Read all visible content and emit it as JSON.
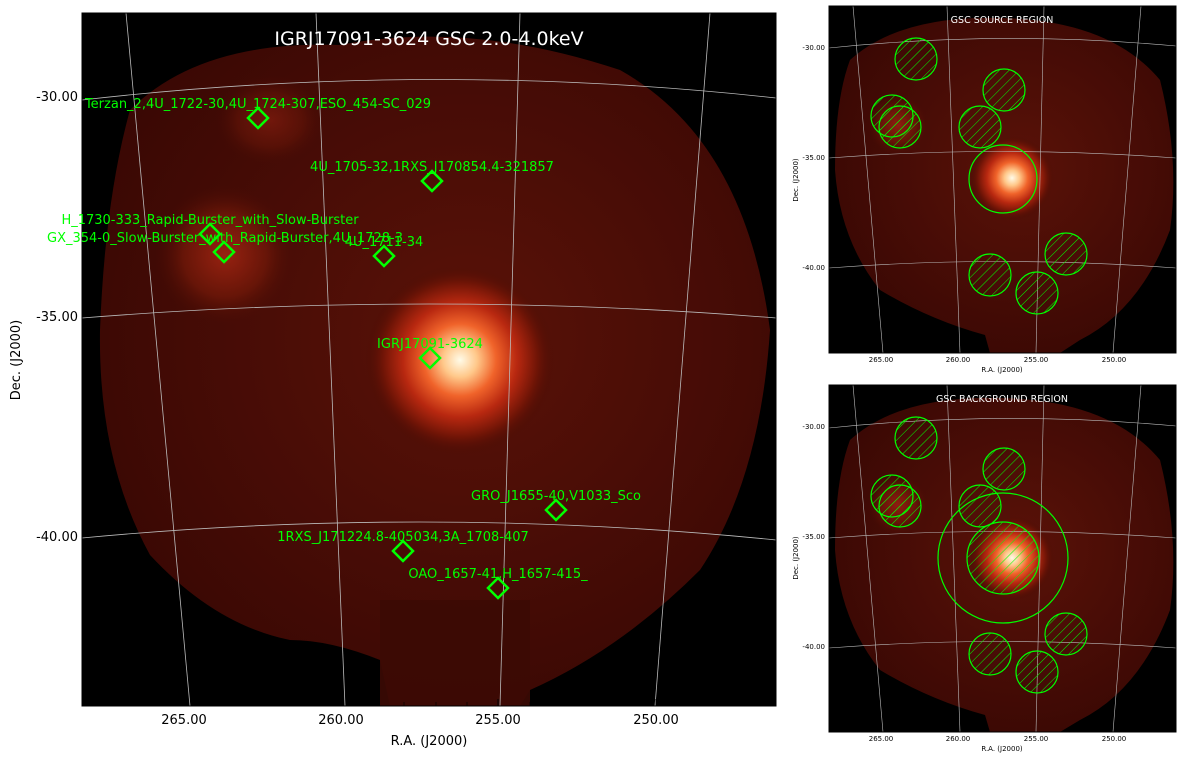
{
  "main": {
    "title": "IGRJ17091-3624 GSC 2.0-4.0keV",
    "xlabel": "R.A. (J2000)",
    "ylabel": "Dec. (J2000)",
    "ra_ticks": [
      "265.00",
      "260.00",
      "255.00",
      "250.00"
    ],
    "dec_ticks": [
      "-30.00",
      "-35.00",
      "-40.00"
    ],
    "sources": [
      {
        "label": "Terzan_2,4U_1722-30,4U_1724-307,ESO_454-SC_029"
      },
      {
        "label": "4U_1705-32,1RXS_J170854.4-321857"
      },
      {
        "label": "H_1730-333_Rapid-Burster_with_Slow-Burster"
      },
      {
        "label": "GX_354-0_Slow-Burster_with_Rapid-Burster,4U_1728-3"
      },
      {
        "label": "4U_1711-34"
      },
      {
        "label": "IGRJ17091-3624"
      },
      {
        "label": "GRO_J1655-40,V1033_Sco"
      },
      {
        "label": "1RXS_J171224.8-405034,3A_1708-407"
      },
      {
        "label": "OAO_1657-41,H_1657-415_"
      }
    ]
  },
  "source_panel": {
    "title": "GSC SOURCE REGION",
    "xlabel": "R.A. (J2000)",
    "ylabel": "Dec. (J2000)",
    "ra_ticks": [
      "265.00",
      "260.00",
      "255.00",
      "250.00"
    ],
    "dec_ticks": [
      "-30.00",
      "-35.00",
      "-40.00"
    ]
  },
  "background_panel": {
    "title": "GSC BACKGROUND REGION",
    "xlabel": "R.A. (J2000)",
    "ylabel": "Dec. (J2000)",
    "ra_ticks": [
      "265.00",
      "260.00",
      "255.00",
      "250.00"
    ],
    "dec_ticks": [
      "-30.00",
      "-35.00",
      "-40.00"
    ]
  },
  "colors": {
    "marker": "#00ff00",
    "label": "#00ff00",
    "grid": "#bbbbbb",
    "background": "#000000",
    "title_text": "#ffffff"
  }
}
